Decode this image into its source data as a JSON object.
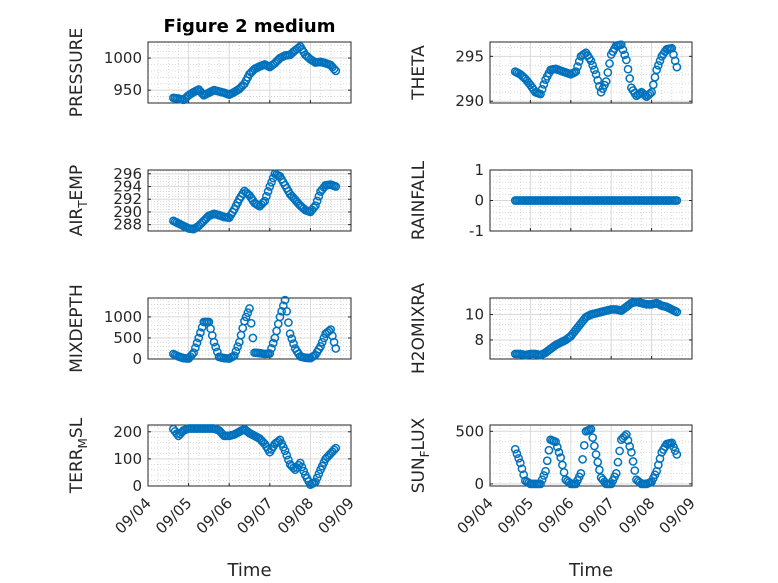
{
  "colors": {
    "marker": "#0072BD",
    "axis": "#262626"
  },
  "chart_data": [
    {
      "type": "scatter",
      "title": "Figure 2 medium",
      "ylabel": "PRESSURE",
      "xlim": [
        "09/04",
        "09/09"
      ],
      "ylim": [
        930,
        1025
      ],
      "yticks": [
        950,
        1000
      ],
      "grid": true,
      "x": [
        "09/04 15:00",
        "09/04 18:00",
        "09/04 21:00",
        "09/05 00:00",
        "09/05 03:00",
        "09/05 06:00",
        "09/05 09:00",
        "09/05 12:00",
        "09/05 15:00",
        "09/05 18:00",
        "09/05 21:00",
        "09/06 00:00",
        "09/06 03:00",
        "09/06 06:00",
        "09/06 09:00",
        "09/06 12:00",
        "09/06 15:00",
        "09/06 18:00",
        "09/06 21:00",
        "09/07 00:00",
        "09/07 03:00",
        "09/07 06:00",
        "09/07 09:00",
        "09/07 12:00",
        "09/07 15:00",
        "09/07 18:00",
        "09/07 21:00",
        "09/08 00:00",
        "09/08 03:00",
        "09/08 06:00",
        "09/08 09:00",
        "09/08 12:00",
        "09/08 15:00"
      ],
      "y": [
        938,
        937,
        935,
        942,
        947,
        951,
        942,
        946,
        950,
        948,
        946,
        943,
        947,
        952,
        960,
        975,
        983,
        987,
        990,
        986,
        992,
        1000,
        1004,
        1005,
        1012,
        1018,
        1005,
        998,
        993,
        994,
        992,
        989,
        980
      ]
    },
    {
      "type": "scatter",
      "ylabel": "THETA",
      "xlim": [
        "09/04",
        "09/09"
      ],
      "ylim": [
        289.8,
        296.6
      ],
      "yticks": [
        290,
        295
      ],
      "grid": true,
      "x": [
        "09/04 15:00",
        "09/04 18:00",
        "09/04 21:00",
        "09/05 00:00",
        "09/05 03:00",
        "09/05 06:00",
        "09/05 09:00",
        "09/05 12:00",
        "09/05 15:00",
        "09/05 18:00",
        "09/05 21:00",
        "09/06 00:00",
        "09/06 03:00",
        "09/06 06:00",
        "09/06 09:00",
        "09/06 12:00",
        "09/06 15:00",
        "09/06 18:00",
        "09/06 21:00",
        "09/07 00:00",
        "09/07 03:00",
        "09/07 06:00",
        "09/07 09:00",
        "09/07 12:00",
        "09/07 15:00",
        "09/07 18:00",
        "09/07 21:00",
        "09/08 00:00",
        "09/08 03:00",
        "09/08 06:00",
        "09/08 09:00",
        "09/08 12:00",
        "09/08 15:00"
      ],
      "y": [
        293.3,
        293.0,
        292.5,
        291.8,
        291.0,
        290.8,
        292.4,
        293.5,
        293.6,
        293.4,
        293.2,
        293.0,
        293.3,
        295.0,
        295.4,
        294.5,
        293.0,
        291.0,
        292.2,
        295.2,
        296.2,
        296.3,
        294.6,
        291.5,
        290.6,
        291.0,
        290.5,
        291.0,
        293.5,
        295.0,
        295.8,
        295.9,
        293.8
      ]
    },
    {
      "type": "scatter",
      "ylabel": "AIR_TEMP",
      "xlim": [
        "09/04",
        "09/09"
      ],
      "ylim": [
        287,
        296.6
      ],
      "yticks": [
        288,
        290,
        292,
        294,
        296
      ],
      "grid": true,
      "x": [
        "09/04 15:00",
        "09/04 18:00",
        "09/04 21:00",
        "09/05 00:00",
        "09/05 03:00",
        "09/05 06:00",
        "09/05 09:00",
        "09/05 12:00",
        "09/05 15:00",
        "09/05 18:00",
        "09/05 21:00",
        "09/06 00:00",
        "09/06 03:00",
        "09/06 06:00",
        "09/06 09:00",
        "09/06 12:00",
        "09/06 15:00",
        "09/06 18:00",
        "09/06 21:00",
        "09/07 00:00",
        "09/07 03:00",
        "09/07 06:00",
        "09/07 09:00",
        "09/07 12:00",
        "09/07 15:00",
        "09/07 18:00",
        "09/07 21:00",
        "09/08 00:00",
        "09/08 03:00",
        "09/08 06:00",
        "09/08 09:00",
        "09/08 12:00",
        "09/08 15:00"
      ],
      "y": [
        288.6,
        288.2,
        287.8,
        287.4,
        287.3,
        287.8,
        288.6,
        289.4,
        289.7,
        289.5,
        289.2,
        289.1,
        290.4,
        292.0,
        293.3,
        292.6,
        291.4,
        290.9,
        291.7,
        294.0,
        296.0,
        295.6,
        294.2,
        292.8,
        291.9,
        291.0,
        290.3,
        290.0,
        291.0,
        293.2,
        294.2,
        294.3,
        294.0
      ]
    },
    {
      "type": "scatter",
      "ylabel": "RAINFALL",
      "xlim": [
        "09/04",
        "09/09"
      ],
      "ylim": [
        -1,
        1
      ],
      "yticks": [
        -1,
        0,
        1
      ],
      "grid": true,
      "x": [
        "09/04 15:00",
        "09/08 15:00"
      ],
      "y": [
        0,
        0
      ]
    },
    {
      "type": "scatter",
      "ylabel": "MIXDEPTH",
      "xlim": [
        "09/04",
        "09/09"
      ],
      "ylim": [
        0,
        1450
      ],
      "yticks": [
        0,
        500,
        1000
      ],
      "grid": true,
      "x": [
        "09/04 15:00",
        "09/04 18:00",
        "09/04 21:00",
        "09/05 00:00",
        "09/05 03:00",
        "09/05 06:00",
        "09/05 09:00",
        "09/05 12:00",
        "09/05 15:00",
        "09/05 18:00",
        "09/05 21:00",
        "09/06 00:00",
        "09/06 03:00",
        "09/06 06:00",
        "09/06 09:00",
        "09/06 12:00",
        "09/06 15:00",
        "09/06 18:00",
        "09/06 21:00",
        "09/07 00:00",
        "09/07 03:00",
        "09/07 06:00",
        "09/07 09:00",
        "09/07 12:00",
        "09/07 15:00",
        "09/07 18:00",
        "09/07 21:00",
        "09/08 00:00",
        "09/08 03:00",
        "09/08 06:00",
        "09/08 09:00",
        "09/08 12:00",
        "09/08 15:00"
      ],
      "y": [
        120,
        60,
        20,
        10,
        150,
        500,
        880,
        880,
        400,
        50,
        20,
        10,
        80,
        400,
        900,
        1200,
        150,
        140,
        120,
        130,
        500,
        1000,
        1400,
        600,
        250,
        60,
        30,
        20,
        100,
        300,
        600,
        700,
        250
      ]
    },
    {
      "type": "scatter",
      "ylabel": "H2OMIXRA",
      "xlim": [
        "09/04",
        "09/09"
      ],
      "ylim": [
        6.5,
        11.3
      ],
      "yticks": [
        8,
        10
      ],
      "grid": true,
      "x": [
        "09/04 15:00",
        "09/04 18:00",
        "09/04 21:00",
        "09/05 00:00",
        "09/05 03:00",
        "09/05 06:00",
        "09/05 09:00",
        "09/05 12:00",
        "09/05 15:00",
        "09/05 18:00",
        "09/05 21:00",
        "09/06 00:00",
        "09/06 03:00",
        "09/06 06:00",
        "09/06 09:00",
        "09/06 12:00",
        "09/06 15:00",
        "09/06 18:00",
        "09/06 21:00",
        "09/07 00:00",
        "09/07 03:00",
        "09/07 06:00",
        "09/07 09:00",
        "09/07 12:00",
        "09/07 15:00",
        "09/07 18:00",
        "09/07 21:00",
        "09/08 00:00",
        "09/08 03:00",
        "09/08 06:00",
        "09/08 09:00",
        "09/08 12:00",
        "09/08 15:00"
      ],
      "y": [
        6.9,
        6.9,
        6.8,
        6.9,
        6.9,
        6.8,
        7.0,
        7.3,
        7.6,
        7.8,
        8.0,
        8.3,
        8.8,
        9.3,
        9.8,
        10.0,
        10.1,
        10.2,
        10.3,
        10.4,
        10.4,
        10.3,
        10.6,
        10.9,
        11.0,
        10.9,
        10.8,
        10.8,
        10.9,
        10.7,
        10.6,
        10.4,
        10.2
      ]
    },
    {
      "type": "scatter",
      "ylabel": "TERR_MSL",
      "xlabel": "Time",
      "xlim": [
        "09/04",
        "09/09"
      ],
      "ylim": [
        0,
        225
      ],
      "yticks": [
        0,
        100,
        200
      ],
      "xticks": [
        "09/04",
        "09/05",
        "09/06",
        "09/07",
        "09/08",
        "09/09"
      ],
      "grid": true,
      "x": [
        "09/04 15:00",
        "09/04 18:00",
        "09/04 21:00",
        "09/05 00:00",
        "09/05 03:00",
        "09/05 06:00",
        "09/05 09:00",
        "09/05 12:00",
        "09/05 15:00",
        "09/05 18:00",
        "09/05 21:00",
        "09/06 00:00",
        "09/06 03:00",
        "09/06 06:00",
        "09/06 09:00",
        "09/06 12:00",
        "09/06 15:00",
        "09/06 18:00",
        "09/06 21:00",
        "09/07 00:00",
        "09/07 03:00",
        "09/07 06:00",
        "09/07 09:00",
        "09/07 12:00",
        "09/07 15:00",
        "09/07 18:00",
        "09/07 21:00",
        "09/08 00:00",
        "09/08 03:00",
        "09/08 06:00",
        "09/08 09:00",
        "09/08 12:00",
        "09/08 15:00"
      ],
      "y": [
        210,
        185,
        205,
        212,
        212,
        212,
        212,
        212,
        212,
        205,
        185,
        185,
        190,
        200,
        210,
        195,
        185,
        175,
        155,
        125,
        155,
        170,
        130,
        80,
        60,
        85,
        40,
        5,
        15,
        60,
        100,
        120,
        140
      ]
    },
    {
      "type": "scatter",
      "ylabel": "SUN_FLUX",
      "xlabel": "Time",
      "xlim": [
        "09/04",
        "09/09"
      ],
      "ylim": [
        -20,
        560
      ],
      "yticks": [
        0,
        500
      ],
      "xticks": [
        "09/04",
        "09/05",
        "09/06",
        "09/07",
        "09/08",
        "09/09"
      ],
      "grid": true,
      "x": [
        "09/04 15:00",
        "09/04 18:00",
        "09/04 21:00",
        "09/05 00:00",
        "09/05 03:00",
        "09/05 06:00",
        "09/05 09:00",
        "09/05 12:00",
        "09/05 15:00",
        "09/05 18:00",
        "09/05 21:00",
        "09/06 00:00",
        "09/06 03:00",
        "09/06 06:00",
        "09/06 09:00",
        "09/06 12:00",
        "09/06 15:00",
        "09/06 18:00",
        "09/06 21:00",
        "09/07 00:00",
        "09/07 03:00",
        "09/07 06:00",
        "09/07 09:00",
        "09/07 12:00",
        "09/07 15:00",
        "09/07 18:00",
        "09/07 21:00",
        "09/08 00:00",
        "09/08 03:00",
        "09/08 06:00",
        "09/08 09:00",
        "09/08 12:00",
        "09/08 15:00"
      ],
      "y": [
        330,
        200,
        30,
        0,
        0,
        0,
        120,
        420,
        400,
        250,
        40,
        0,
        0,
        100,
        500,
        520,
        280,
        60,
        0,
        0,
        100,
        420,
        470,
        300,
        40,
        0,
        0,
        20,
        120,
        300,
        380,
        390,
        280
      ]
    }
  ]
}
